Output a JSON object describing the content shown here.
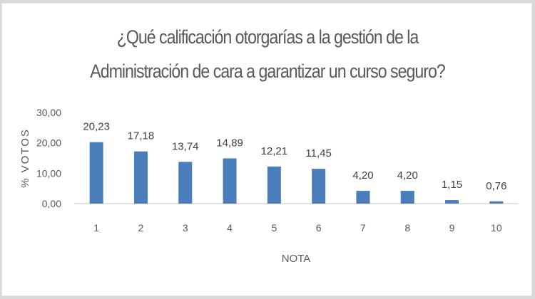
{
  "title_lines": [
    "¿Qué calificación otorgarías a la gestión de la",
    "Administración de cara a garantizar un curso seguro?"
  ],
  "colors": {
    "bar": "#4a7ebb",
    "axis": "#d9d9d9",
    "text": "#595959"
  },
  "chart_data": {
    "type": "bar",
    "title": "¿Qué calificación otorgarías a la gestión de la Administración de cara a garantizar un curso seguro?",
    "xlabel": "NOTA",
    "ylabel": "% VOTOS",
    "categories": [
      "1",
      "2",
      "3",
      "4",
      "5",
      "6",
      "7",
      "8",
      "9",
      "10"
    ],
    "values": [
      20.23,
      17.18,
      13.74,
      14.89,
      12.21,
      11.45,
      4.2,
      4.2,
      1.15,
      0.76
    ],
    "value_labels": [
      "20,23",
      "17,18",
      "13,74",
      "14,89",
      "12,21",
      "11,45",
      "4,20",
      "4,20",
      "1,15",
      "0,76"
    ],
    "ylim": [
      0,
      30
    ],
    "yticks": [
      0,
      10,
      20,
      30
    ],
    "ytick_labels": [
      "0,00",
      "10,00",
      "20,00",
      "30,00"
    ],
    "grid": false,
    "legend": null
  }
}
